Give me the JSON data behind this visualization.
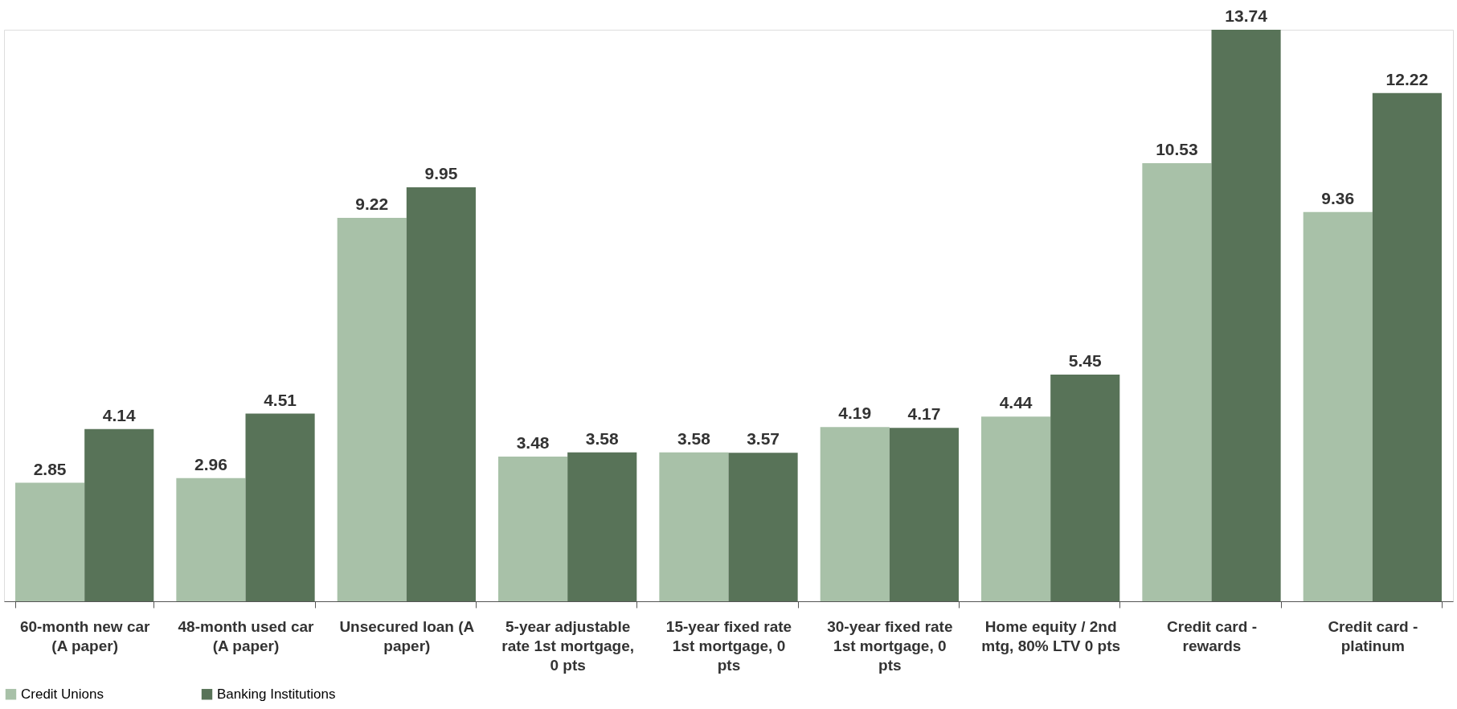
{
  "chart_data": {
    "type": "bar",
    "categories": [
      "60-month new car (A paper)",
      "48-month used car (A paper)",
      "Unsecured loan (A paper)",
      "5-year adjustable rate 1st mortgage, 0 pts",
      "15-year fixed rate 1st mortgage, 0 pts",
      "30-year fixed rate 1st mortgage, 0 pts",
      "Home equity / 2nd mtg, 80% LTV 0 pts",
      "Credit card - rewards",
      "Credit card - platinum"
    ],
    "series": [
      {
        "name": "Credit Unions",
        "color": "#a8c1a8",
        "values": [
          2.85,
          2.96,
          9.22,
          3.48,
          3.58,
          4.19,
          4.44,
          10.53,
          9.36
        ]
      },
      {
        "name": "Banking Institutions",
        "color": "#587358",
        "values": [
          4.14,
          4.51,
          9.95,
          3.58,
          3.57,
          4.17,
          5.45,
          13.74,
          12.22
        ]
      }
    ],
    "data_labels": true,
    "legend": "bottom"
  }
}
